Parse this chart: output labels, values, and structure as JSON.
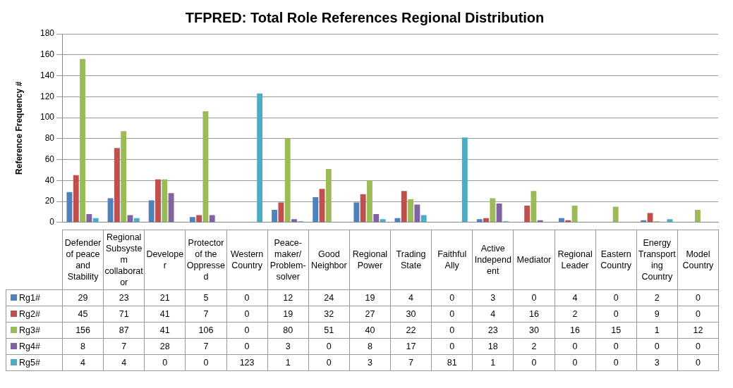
{
  "chart_data": {
    "type": "bar",
    "title": "TFPRED: Total Role References Regional Distribution",
    "ylabel": "Reference Frequency #",
    "categories": [
      "Defender of peace and Stability",
      "Regional Subsystem collaborator",
      "Developer",
      "Protector of the Oppressed",
      "Western Country",
      "Peace-maker/ Problem-solver",
      "Good Neighbor",
      "Regional Power",
      "Trading State",
      "Faithful Ally",
      "Active Independent",
      "Mediator",
      "Regional Leader",
      "Eastern Country",
      "Energy Transporting Country",
      "Model Country"
    ],
    "series": [
      {
        "name": "Rg1#",
        "color": "#4f81bd",
        "values": [
          29,
          23,
          21,
          5,
          0,
          12,
          24,
          19,
          4,
          0,
          3,
          0,
          4,
          0,
          2,
          0
        ]
      },
      {
        "name": "Rg2#",
        "color": "#c0504d",
        "values": [
          45,
          71,
          41,
          7,
          0,
          19,
          32,
          27,
          30,
          0,
          4,
          16,
          2,
          0,
          9,
          0
        ]
      },
      {
        "name": "Rg3#",
        "color": "#9bbb59",
        "values": [
          156,
          87,
          41,
          106,
          0,
          80,
          51,
          40,
          22,
          0,
          23,
          30,
          16,
          15,
          1,
          12
        ]
      },
      {
        "name": "Rg4#",
        "color": "#8064a2",
        "values": [
          8,
          7,
          28,
          7,
          0,
          3,
          0,
          8,
          17,
          0,
          18,
          2,
          0,
          0,
          0,
          0
        ]
      },
      {
        "name": "Rg5#",
        "color": "#4bacc6",
        "values": [
          4,
          4,
          0,
          0,
          123,
          1,
          0,
          3,
          7,
          81,
          1,
          0,
          0,
          0,
          3,
          0
        ]
      }
    ],
    "ylim": [
      0,
      180
    ],
    "yticks": [
      0,
      20,
      40,
      60,
      80,
      100,
      120,
      140,
      160,
      180
    ],
    "grid": "y",
    "legend": "bottom",
    "data_labels": true
  }
}
